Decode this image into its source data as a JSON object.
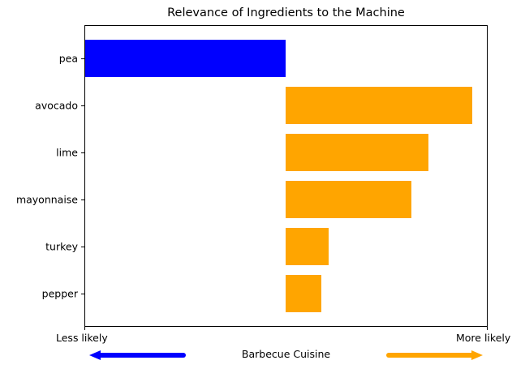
{
  "chart_data": {
    "type": "bar",
    "orientation": "horizontal",
    "title": "Relevance of Ingredients to the Machine",
    "xlabel": "Barbecue Cuisine",
    "x_left_label": "Less likely",
    "x_right_label": "More likely",
    "categories": [
      "pea",
      "avocado",
      "lime",
      "mayonnaise",
      "turkey",
      "pepper"
    ],
    "values": [
      -0.248,
      0.23,
      0.176,
      0.155,
      0.053,
      0.044
    ],
    "xlim": [
      -0.248,
      0.248
    ],
    "grid": false,
    "legend": "none",
    "colors": {
      "negative": "#0000ff",
      "positive": "#ffa500"
    }
  }
}
